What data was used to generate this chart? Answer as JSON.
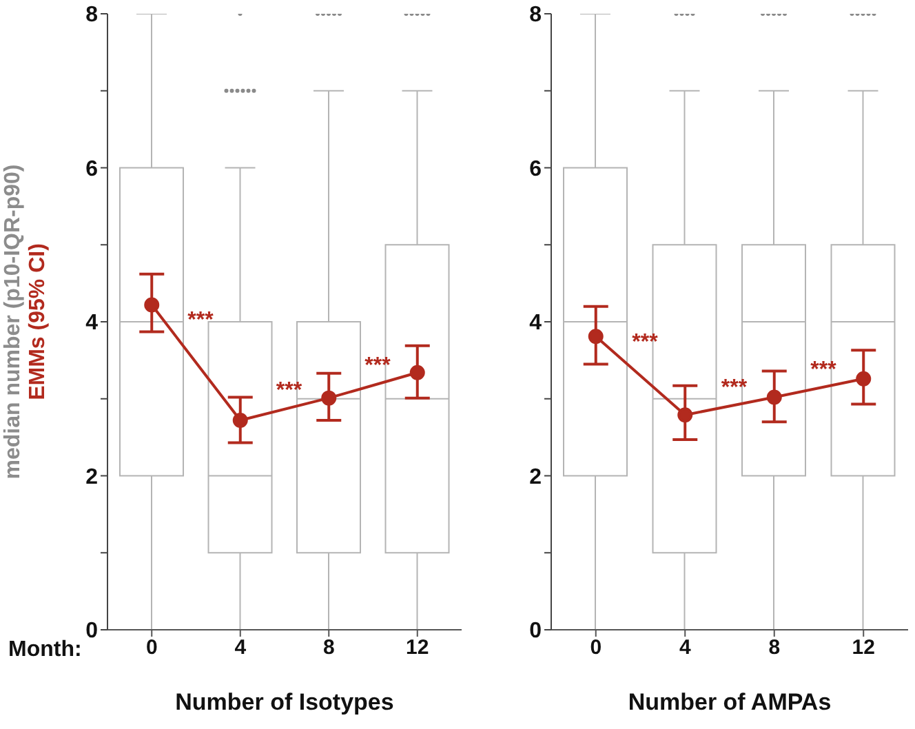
{
  "chart_data": [
    {
      "type": "box",
      "categories": [
        "0",
        "4",
        "8",
        "12"
      ],
      "xlabel": "Number of Isotypes",
      "ylabel": "median number (p10-IQR-p90)",
      "ylim": [
        0,
        8
      ],
      "yticks": [
        0,
        {
          "value": 1,
          "label": null
        },
        2,
        {
          "value": 3,
          "label": null
        },
        4,
        {
          "value": 5,
          "label": null
        },
        6,
        {
          "value": 7,
          "label": null
        },
        8
      ],
      "series": [
        {
          "type": "box",
          "color": "#b4b4b4",
          "boxes": [
            {
              "low": 0,
              "q1": 2,
              "median": 4,
              "q3": 6,
              "high": 8
            },
            {
              "low": 0,
              "q1": 1,
              "median": 2,
              "q3": 4,
              "high": 6,
              "outliers": [
                7,
                7,
                7,
                7,
                7,
                7,
                8
              ]
            },
            {
              "low": 0,
              "q1": 1,
              "median": 3,
              "q3": 4,
              "high": 7,
              "outliers": [
                8,
                8,
                8,
                8,
                8
              ]
            },
            {
              "low": 0,
              "q1": 1,
              "median": 3,
              "q3": 5,
              "high": 7,
              "outliers": [
                8,
                8,
                8,
                8,
                8
              ]
            }
          ]
        },
        {
          "type": "line",
          "name": "EMMs (95% CI)",
          "color": "#b22a1e",
          "marker": "circle",
          "values": [
            4.22,
            2.72,
            3.01,
            3.34
          ],
          "errors": [
            [
              3.87,
              4.62
            ],
            [
              2.43,
              3.02
            ],
            [
              2.72,
              3.33
            ],
            [
              3.01,
              3.69
            ]
          ]
        }
      ],
      "annotations": [
        "Month:",
        "***",
        "***",
        "***"
      ]
    },
    {
      "type": "box",
      "categories": [
        "0",
        "4",
        "8",
        "12"
      ],
      "xlabel": "Number of AMPAs",
      "ylim": [
        0,
        8
      ],
      "yticks": [
        0,
        {
          "value": 1,
          "label": null
        },
        2,
        {
          "value": 3,
          "label": null
        },
        4,
        {
          "value": 5,
          "label": null
        },
        6,
        {
          "value": 7,
          "label": null
        },
        8
      ],
      "series": [
        {
          "type": "box",
          "color": "#b4b4b4",
          "boxes": [
            {
              "low": 0,
              "q1": 2,
              "median": 4,
              "q3": 6,
              "high": 8
            },
            {
              "low": 0,
              "q1": 1,
              "median": 3,
              "q3": 5,
              "high": 7,
              "outliers": [
                8,
                8,
                8,
                8
              ]
            },
            {
              "low": 0,
              "q1": 2,
              "median": 4,
              "q3": 5,
              "high": 7,
              "outliers": [
                8,
                8,
                8,
                8,
                8
              ]
            },
            {
              "low": 0,
              "q1": 2,
              "median": 4,
              "q3": 5,
              "high": 7,
              "outliers": [
                8,
                8,
                8,
                8,
                8
              ]
            }
          ]
        },
        {
          "type": "line",
          "color": "#b22a1e",
          "marker": "circle",
          "values": [
            3.81,
            2.79,
            3.02,
            3.26
          ],
          "errors": [
            [
              3.45,
              4.2
            ],
            [
              2.47,
              3.17
            ],
            [
              2.7,
              3.36
            ],
            [
              2.93,
              3.63
            ]
          ]
        }
      ],
      "annotations": [
        "***",
        "***",
        "***"
      ]
    }
  ]
}
